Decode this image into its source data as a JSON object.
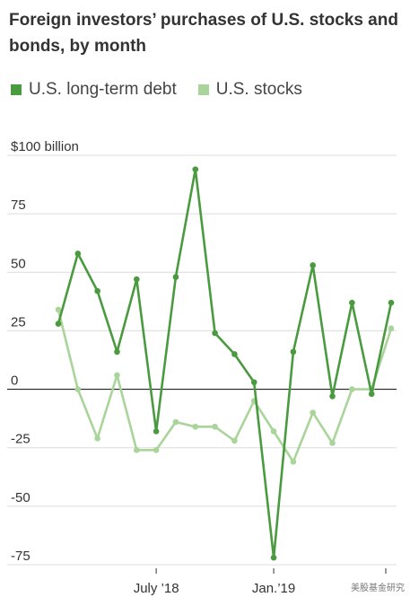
{
  "chart_data": {
    "type": "line",
    "title": "Foreign investors’ purchases of U.S. stocks and bonds, by month",
    "xlabel": "",
    "ylabel": "",
    "x_ticks": [
      "July ’18",
      "Jan.’19"
    ],
    "y_ticks": [
      "$100 billion",
      "75",
      "50",
      "25",
      "0",
      "-25",
      "-50",
      "-75"
    ],
    "y_tick_values": [
      100,
      75,
      50,
      25,
      0,
      -25,
      -50,
      -75
    ],
    "ylim": [
      -75,
      100
    ],
    "grid": true,
    "legend_position": "top-left",
    "series": [
      {
        "name": "U.S. long-term debt",
        "color": "#4a9a3f",
        "values": [
          28,
          58,
          42,
          16,
          47,
          -18,
          48,
          94,
          24,
          15,
          3,
          -72,
          16,
          53,
          -3,
          37,
          -2,
          37
        ]
      },
      {
        "name": "U.S. stocks",
        "color": "#a9d49a",
        "values": [
          34,
          0,
          -21,
          6,
          -26,
          -26,
          -14,
          -16,
          -16,
          -22,
          -5,
          -18,
          -31,
          -10,
          -23,
          0,
          0,
          26
        ]
      }
    ]
  },
  "watermark": "美股基金研究"
}
